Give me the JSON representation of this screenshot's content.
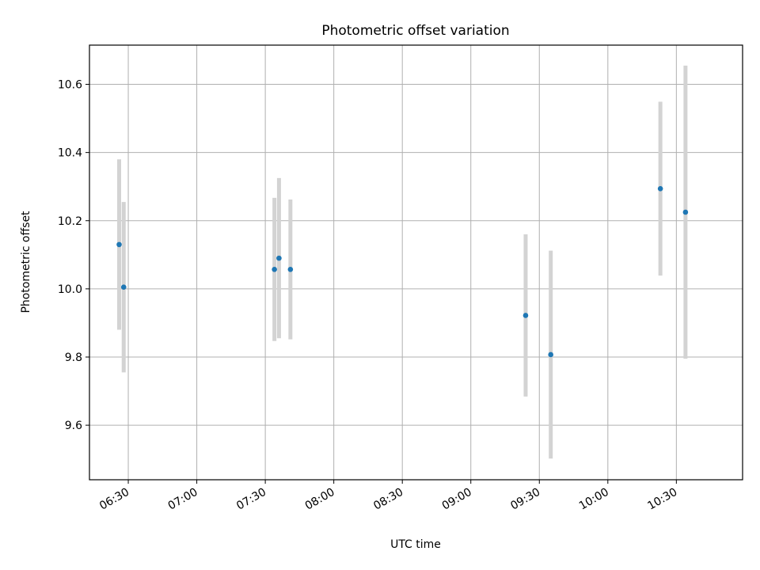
{
  "chart_data": {
    "type": "scatter",
    "title": "Photometric offset variation",
    "xlabel": "UTC time",
    "ylabel": "Photometric offset",
    "x_ticks": [
      "06:30",
      "07:00",
      "07:30",
      "08:00",
      "08:30",
      "09:00",
      "09:30",
      "10:00",
      "10:30"
    ],
    "y_ticks": [
      "9.6",
      "9.8",
      "10.0",
      "10.2",
      "10.4",
      "10.6"
    ],
    "xlim": [
      "06:13",
      "10:59"
    ],
    "ylim": [
      9.44,
      10.715
    ],
    "grid": true,
    "colors": {
      "point": "#1f77b4",
      "errorbar": "#d3d3d3",
      "grid": "#b0b0b0",
      "axes": "#000000"
    },
    "points": [
      {
        "x": "06:26",
        "y": 10.13,
        "err": 0.25
      },
      {
        "x": "06:28",
        "y": 10.005,
        "err": 0.25
      },
      {
        "x": "07:34",
        "y": 10.057,
        "err": 0.21
      },
      {
        "x": "07:36",
        "y": 10.09,
        "err": 0.235
      },
      {
        "x": "07:41",
        "y": 10.057,
        "err": 0.205
      },
      {
        "x": "09:24",
        "y": 9.922,
        "err": 0.238
      },
      {
        "x": "09:35",
        "y": 9.807,
        "err": 0.305
      },
      {
        "x": "10:23",
        "y": 10.294,
        "err": 0.255
      },
      {
        "x": "10:34",
        "y": 10.225,
        "err": 0.43
      }
    ]
  }
}
